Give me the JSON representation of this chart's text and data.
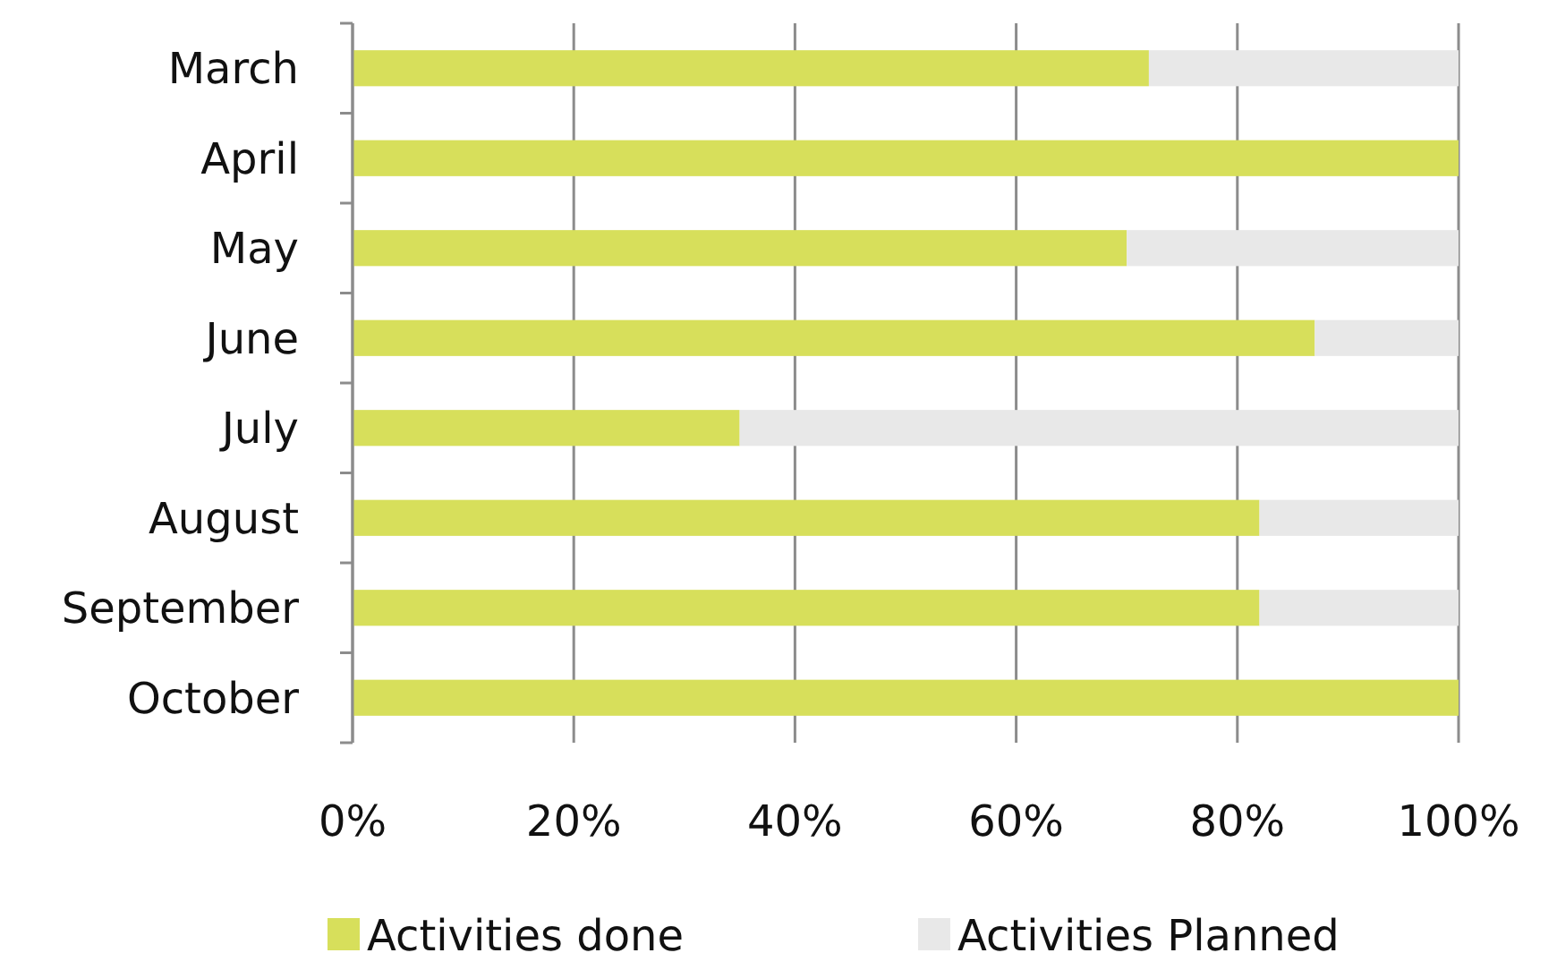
{
  "chart_data": {
    "type": "bar",
    "orientation": "horizontal",
    "stacked": true,
    "categories": [
      "March",
      "April",
      "May",
      "June",
      "July",
      "August",
      "September",
      "October"
    ],
    "series": [
      {
        "name": "Activities done",
        "color": "#d7df5b",
        "values": [
          72,
          100,
          70,
          87,
          35,
          82,
          82,
          100
        ]
      },
      {
        "name": "Activities Planned",
        "color": "#e8e8e8",
        "values": [
          28,
          0,
          30,
          13,
          65,
          18,
          18,
          0
        ]
      }
    ],
    "xlim": [
      0,
      100
    ],
    "xticks": [
      {
        "value": 0,
        "label": "0%"
      },
      {
        "value": 20,
        "label": "20%"
      },
      {
        "value": 40,
        "label": "40%"
      },
      {
        "value": 60,
        "label": "60%"
      },
      {
        "value": 80,
        "label": "80%"
      },
      {
        "value": 100,
        "label": "100%"
      }
    ],
    "grid": "x",
    "legend": "bottom"
  }
}
